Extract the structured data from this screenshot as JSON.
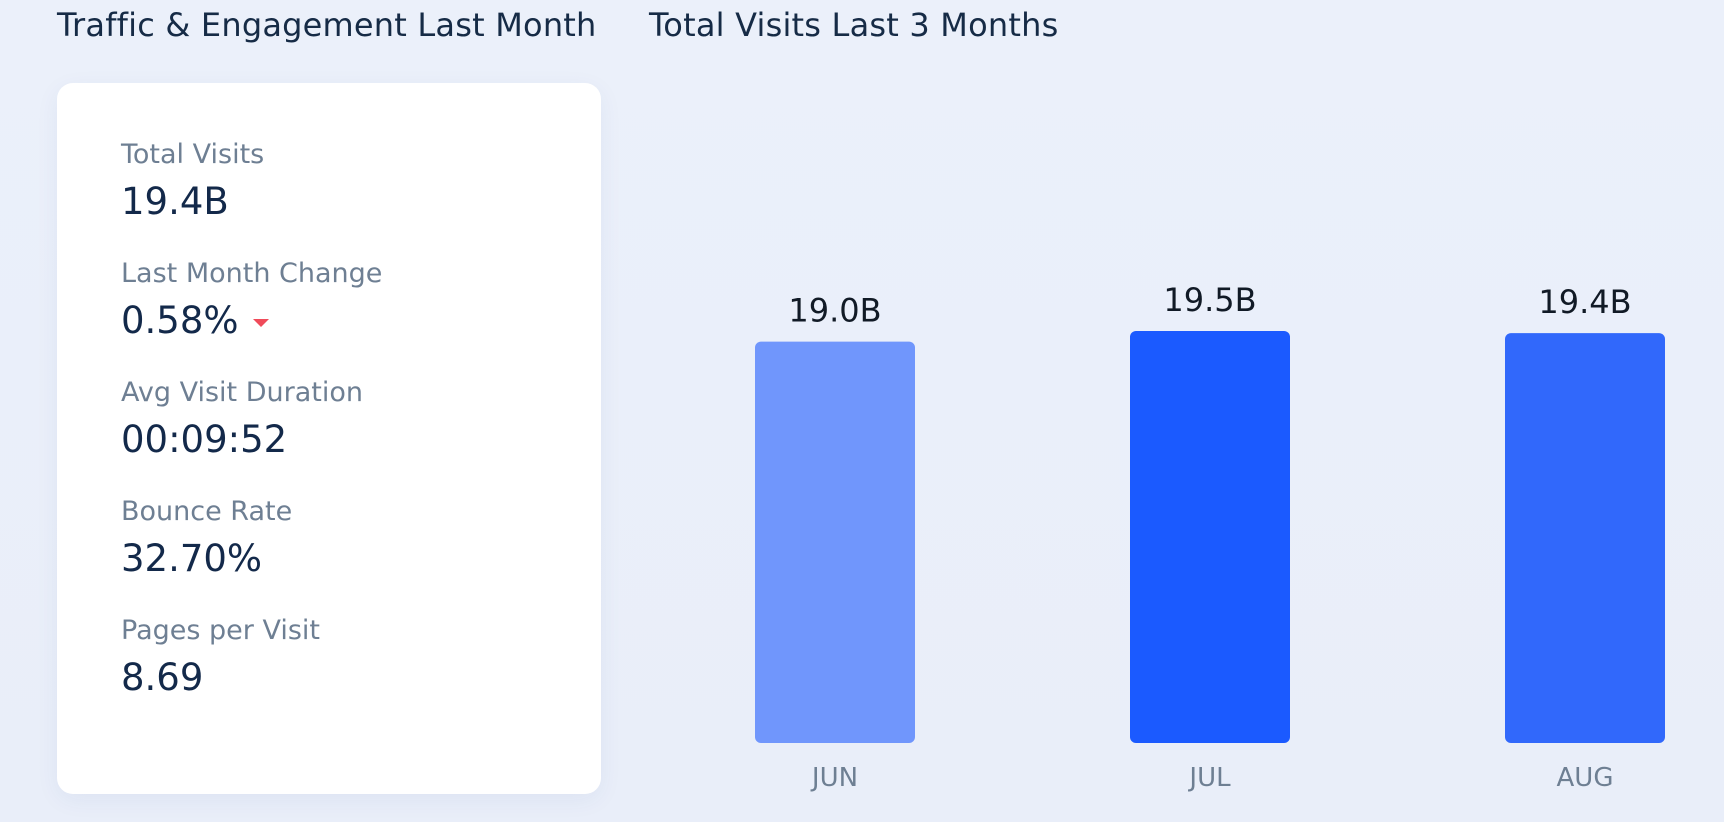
{
  "left_panel": {
    "title": "Traffic & Engagement Last Month",
    "metrics": [
      {
        "label": "Total Visits",
        "value": "19.4B"
      },
      {
        "label": "Last Month Change",
        "value": "0.58%",
        "trend": "down"
      },
      {
        "label": "Avg Visit Duration",
        "value": "00:09:52"
      },
      {
        "label": "Bounce Rate",
        "value": "32.70%"
      },
      {
        "label": "Pages per Visit",
        "value": "8.69"
      }
    ],
    "trend_down_color": "#f04b5a"
  },
  "right_panel": {
    "title": "Total Visits Last 3 Months"
  },
  "chart_data": {
    "type": "bar",
    "title": "Total Visits Last 3 Months",
    "categories": [
      "JUN",
      "JUL",
      "AUG"
    ],
    "values": [
      19.0,
      19.5,
      19.4
    ],
    "value_labels": [
      "19.0B",
      "19.5B",
      "19.4B"
    ],
    "colors": [
      "#7096fc",
      "#1b5aff",
      "#3168fb"
    ],
    "unit": "B",
    "ylim": [
      0,
      25
    ],
    "grid": false,
    "legend": "none",
    "xlabel": "",
    "ylabel": ""
  }
}
